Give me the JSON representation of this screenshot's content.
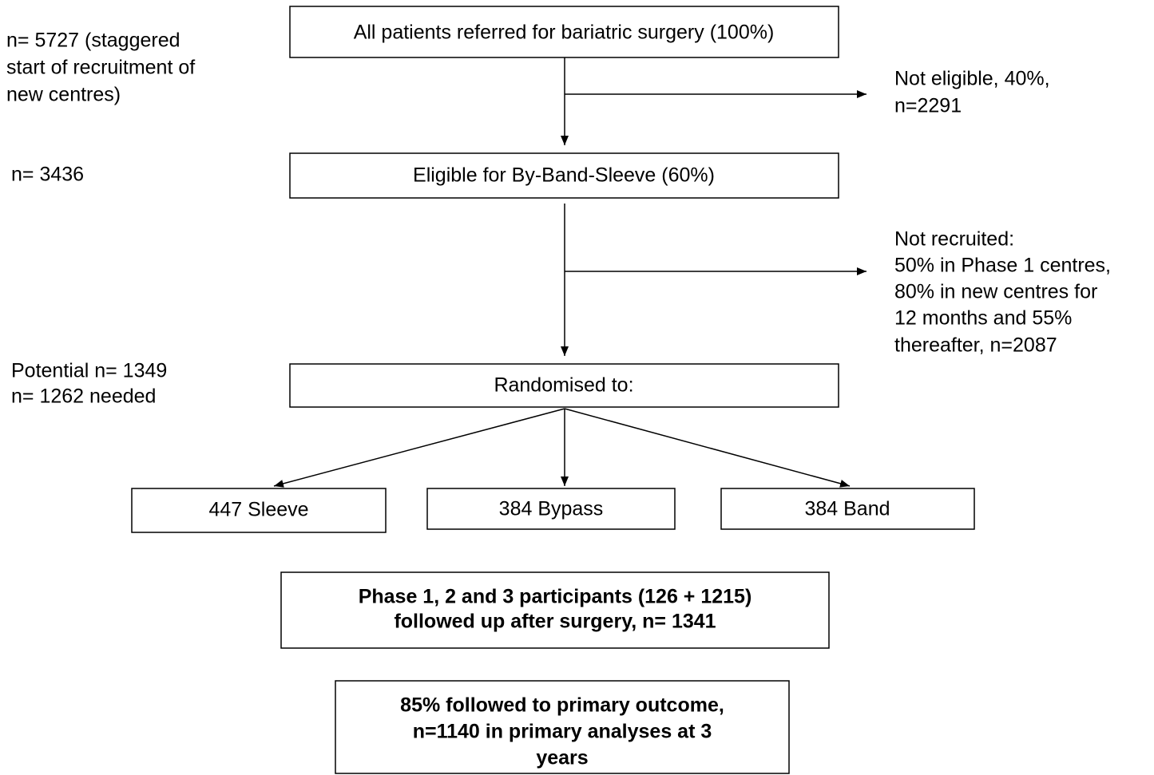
{
  "nodes": [
    {
      "lines": [
        "All patients referred for bariatric surgery (100%)"
      ]
    },
    {
      "lines": [
        "Eligible for By-Band-Sleeve (60%)"
      ]
    },
    {
      "lines": [
        "Randomised to:"
      ]
    },
    {
      "lines": [
        "447 Sleeve"
      ]
    },
    {
      "lines": [
        "384 Bypass"
      ]
    },
    {
      "lines": [
        "384 Band"
      ]
    },
    {
      "lines": [
        "Phase 1, 2 and 3 participants (126 + 1215)",
        "followed up after surgery, n= 1341"
      ]
    },
    {
      "lines": [
        "85% followed to primary outcome,",
        "n=1140 in primary analyses at 3",
        "years"
      ]
    }
  ],
  "left_notes": [
    {
      "lines": [
        "n= 5727 (staggered",
        "start of recruitment of",
        "new centres)"
      ]
    },
    {
      "lines": [
        "n= 3436"
      ]
    },
    {
      "lines": [
        "Potential n= 1349",
        "n= 1262 needed"
      ]
    }
  ],
  "exclusions": [
    {
      "lines": [
        "Not eligible, 40%,",
        "n=2291"
      ]
    },
    {
      "lines": [
        "Not recruited:",
        "50% in Phase 1 centres,",
        "80% in new centres for",
        "12 months and 55%",
        "thereafter, n=2087"
      ]
    }
  ]
}
